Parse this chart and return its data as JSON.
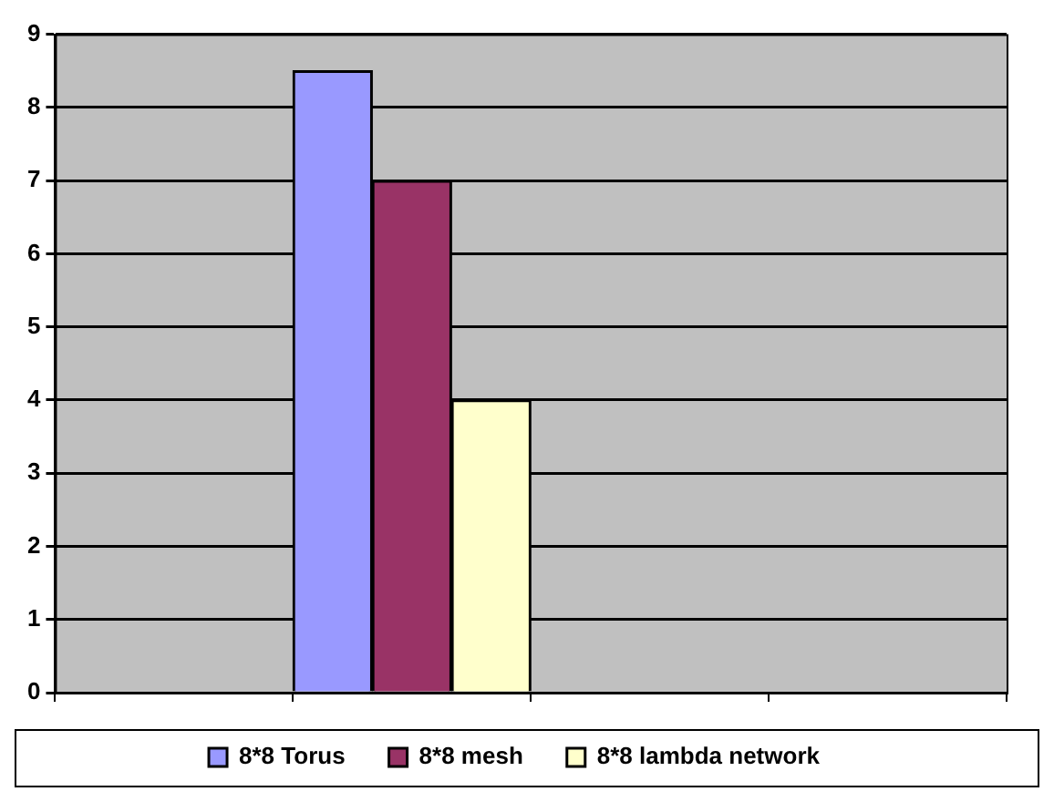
{
  "chart_data": {
    "type": "bar",
    "categories": [
      null,
      null,
      null,
      null
    ],
    "series": [
      {
        "name": "8*8 Torus",
        "color": "#9999ff",
        "values": [
          null,
          8.5,
          null,
          null
        ]
      },
      {
        "name": "8*8 mesh",
        "color": "#993366",
        "values": [
          null,
          7,
          null,
          null
        ]
      },
      {
        "name": "8*8 lambda network",
        "color": "#ffffcc",
        "values": [
          null,
          4,
          null,
          null
        ]
      }
    ],
    "ylim": [
      0,
      9
    ],
    "yticks": [
      0,
      1,
      2,
      3,
      4,
      5,
      6,
      7,
      8,
      9
    ],
    "grid": "y",
    "legend": "bottom"
  }
}
